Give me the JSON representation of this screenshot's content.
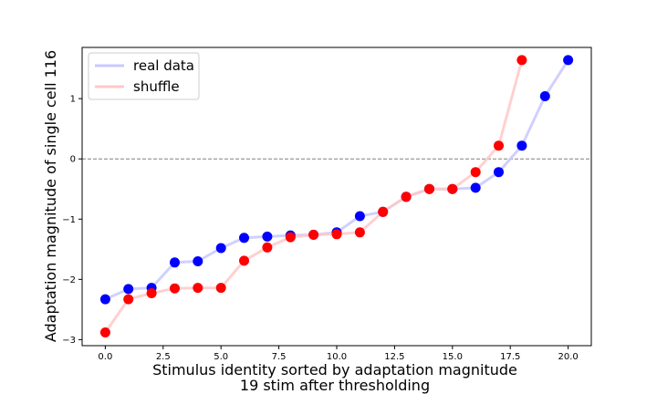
{
  "chart_data": {
    "type": "line",
    "title": "",
    "xlabel": "Stimulus identity sorted by adaptation magnitude",
    "xlabel2": "19 stim after thresholding",
    "ylabel": "Adaptation magnitude of single cell 116",
    "xlim": [
      -1,
      21
    ],
    "ylim": [
      -3.1,
      1.85
    ],
    "xticks": [
      0.0,
      2.5,
      5.0,
      7.5,
      10.0,
      12.5,
      15.0,
      17.5,
      20.0
    ],
    "xtick_labels": [
      "0.0",
      "2.5",
      "5.0",
      "7.5",
      "10.0",
      "12.5",
      "15.0",
      "17.5",
      "20.0"
    ],
    "yticks": [
      -3,
      -2,
      -1,
      0,
      1
    ],
    "ytick_labels": [
      "−3",
      "−2",
      "−1",
      "0",
      "1"
    ],
    "reference_line": {
      "y": 0,
      "style": "dashed",
      "color": "#808080"
    },
    "legend": {
      "position": "top-left"
    },
    "series": [
      {
        "name": "real data",
        "line_color": "#c8c8ff",
        "marker_color": "#0000ff",
        "x": [
          0,
          1,
          2,
          3,
          4,
          5,
          6,
          7,
          8,
          9,
          10,
          11,
          12,
          13,
          14,
          15,
          16,
          17,
          18,
          19,
          20
        ],
        "values": [
          -2.33,
          -2.16,
          -2.14,
          -1.72,
          -1.7,
          -1.48,
          -1.31,
          -1.29,
          -1.27,
          -1.26,
          -1.22,
          -0.95,
          -0.88,
          -0.63,
          -0.5,
          -0.5,
          -0.48,
          -0.22,
          0.22,
          1.04,
          1.64
        ]
      },
      {
        "name": "shuffle",
        "line_color": "#ffc8c8",
        "marker_color": "#ff0000",
        "x": [
          0,
          1,
          2,
          3,
          4,
          5,
          6,
          7,
          8,
          9,
          10,
          11,
          12,
          13,
          14,
          15,
          16,
          17,
          18
        ],
        "values": [
          -2.88,
          -2.33,
          -2.23,
          -2.15,
          -2.14,
          -2.14,
          -1.69,
          -1.47,
          -1.3,
          -1.26,
          -1.25,
          -1.22,
          -0.88,
          -0.63,
          -0.5,
          -0.5,
          -0.22,
          0.22,
          1.64
        ]
      }
    ]
  }
}
